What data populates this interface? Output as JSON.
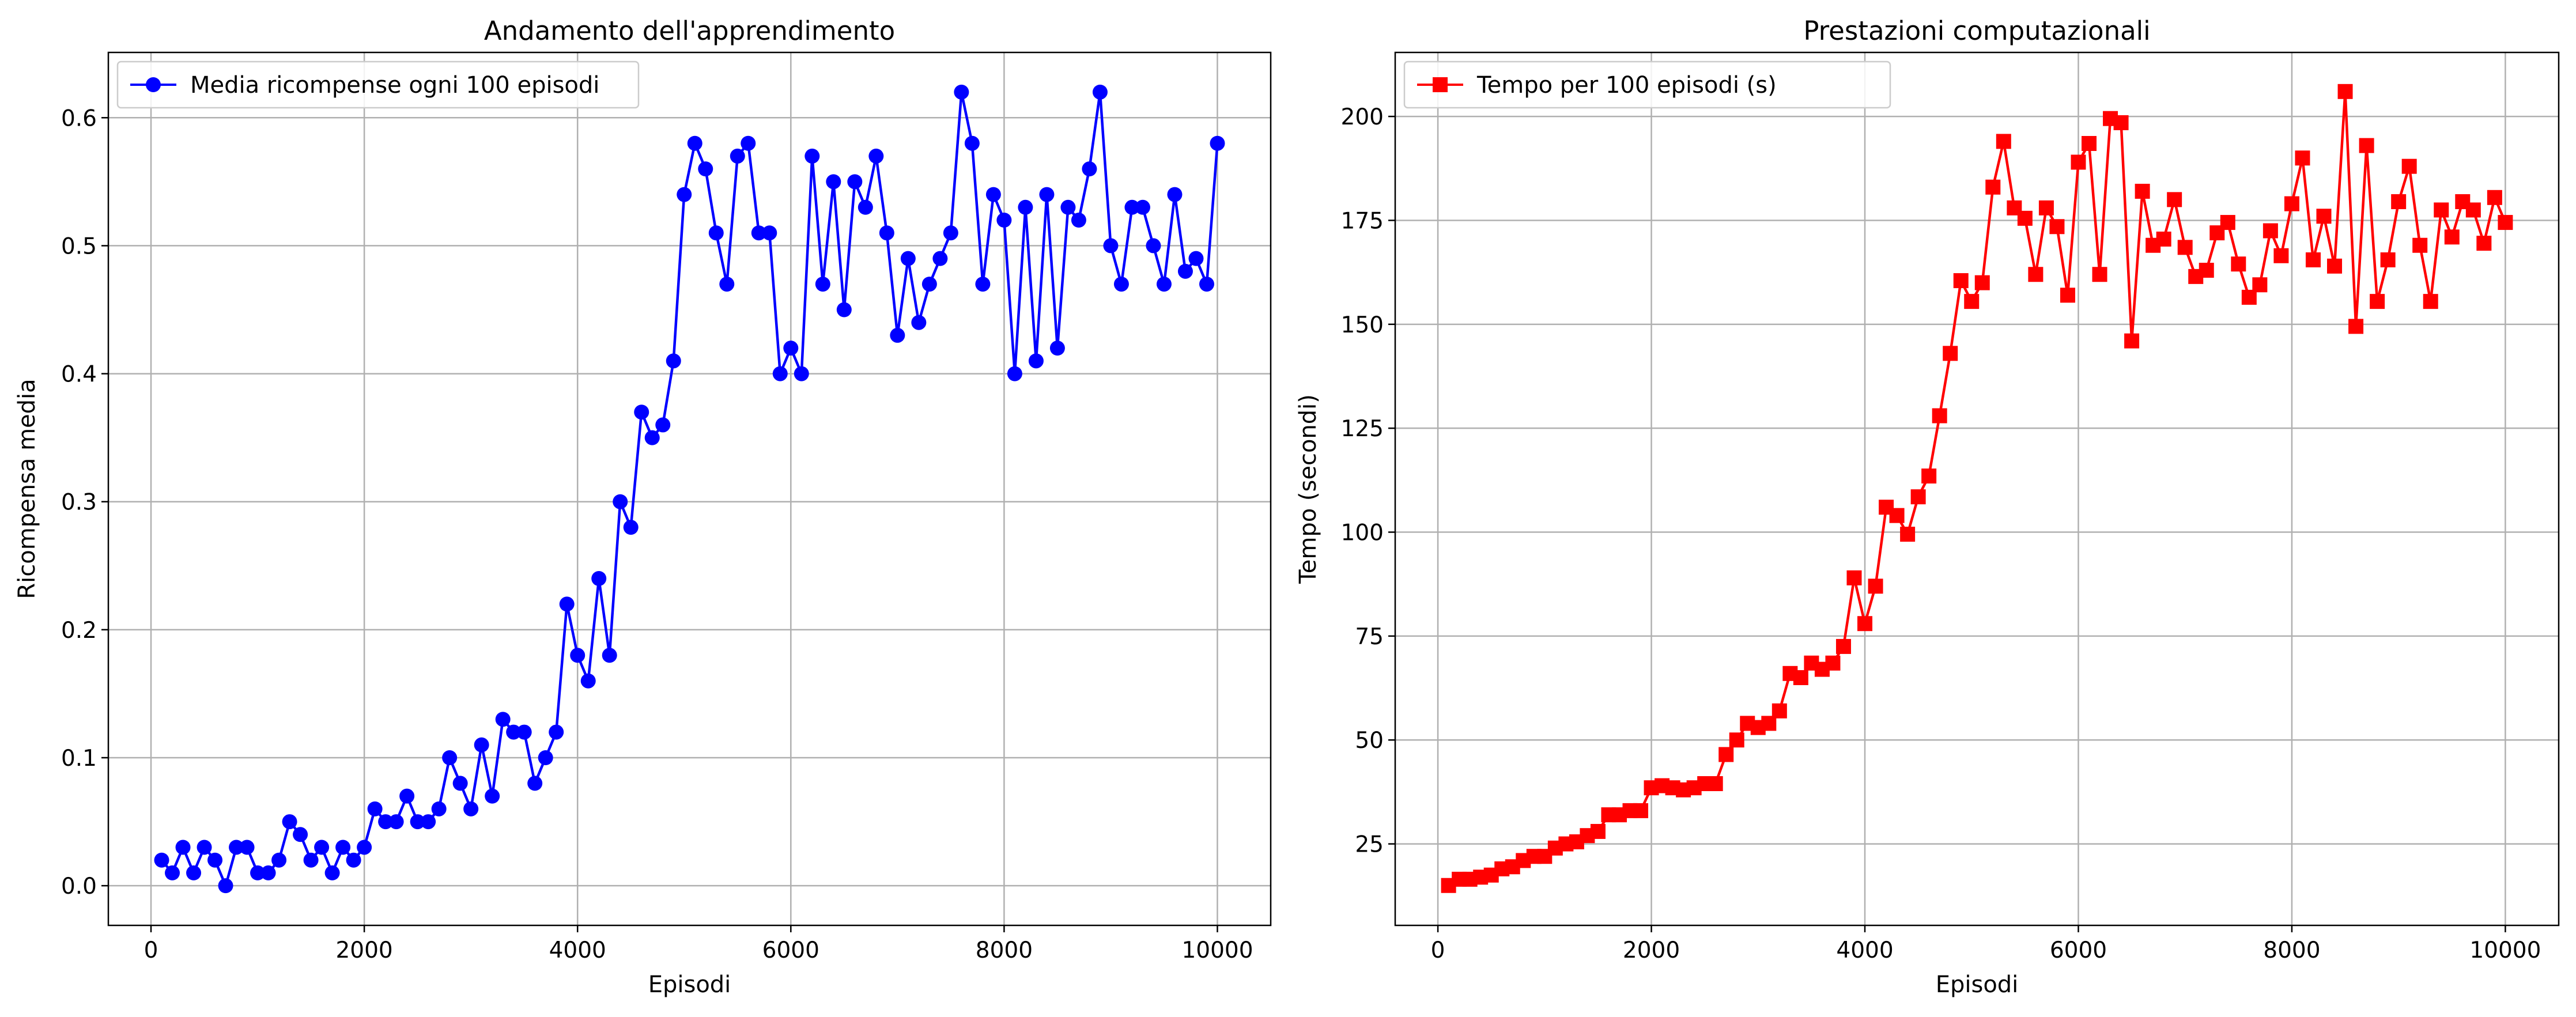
{
  "chart_data": [
    {
      "type": "line",
      "title": "Andamento dell'apprendimento",
      "xlabel": "Episodi",
      "ylabel": "Ricompensa media",
      "xlim": [
        -400,
        10500
      ],
      "ylim": [
        -0.031,
        0.651
      ],
      "xticks": [
        0,
        2000,
        4000,
        6000,
        8000,
        10000
      ],
      "xtick_labels": [
        "0",
        "2000",
        "4000",
        "6000",
        "8000",
        "10000"
      ],
      "yticks": [
        0.0,
        0.1,
        0.2,
        0.3,
        0.4,
        0.5,
        0.6
      ],
      "ytick_labels": [
        "0.0",
        "0.1",
        "0.2",
        "0.3",
        "0.4",
        "0.5",
        "0.6"
      ],
      "grid": true,
      "legend_position": "upper-left",
      "series": [
        {
          "name": "Media ricompense ogni 100 episodi",
          "color": "#0000ff",
          "marker": "circle",
          "x": [
            100,
            200,
            300,
            400,
            500,
            600,
            700,
            800,
            900,
            1000,
            1100,
            1200,
            1300,
            1400,
            1500,
            1600,
            1700,
            1800,
            1900,
            2000,
            2100,
            2200,
            2300,
            2400,
            2500,
            2600,
            2700,
            2800,
            2900,
            3000,
            3100,
            3200,
            3300,
            3400,
            3500,
            3600,
            3700,
            3800,
            3900,
            4000,
            4100,
            4200,
            4300,
            4400,
            4500,
            4600,
            4700,
            4800,
            4900,
            5000,
            5100,
            5200,
            5300,
            5400,
            5500,
            5600,
            5700,
            5800,
            5900,
            6000,
            6100,
            6200,
            6300,
            6400,
            6500,
            6600,
            6700,
            6800,
            6900,
            7000,
            7100,
            7200,
            7300,
            7400,
            7500,
            7600,
            7700,
            7800,
            7900,
            8000,
            8100,
            8200,
            8300,
            8400,
            8500,
            8600,
            8700,
            8800,
            8900,
            9000,
            9100,
            9200,
            9300,
            9400,
            9500,
            9600,
            9700,
            9800,
            9900,
            10000
          ],
          "y": [
            0.02,
            0.01,
            0.03,
            0.01,
            0.03,
            0.02,
            0.0,
            0.03,
            0.03,
            0.01,
            0.01,
            0.02,
            0.05,
            0.04,
            0.02,
            0.03,
            0.01,
            0.03,
            0.02,
            0.03,
            0.06,
            0.05,
            0.05,
            0.07,
            0.05,
            0.05,
            0.06,
            0.1,
            0.08,
            0.06,
            0.11,
            0.07,
            0.13,
            0.12,
            0.12,
            0.08,
            0.1,
            0.12,
            0.22,
            0.18,
            0.16,
            0.24,
            0.18,
            0.3,
            0.28,
            0.37,
            0.35,
            0.36,
            0.41,
            0.54,
            0.58,
            0.56,
            0.51,
            0.47,
            0.57,
            0.58,
            0.51,
            0.51,
            0.4,
            0.42,
            0.4,
            0.57,
            0.47,
            0.55,
            0.45,
            0.55,
            0.53,
            0.57,
            0.51,
            0.43,
            0.49,
            0.44,
            0.47,
            0.49,
            0.51,
            0.62,
            0.58,
            0.47,
            0.54,
            0.52,
            0.4,
            0.53,
            0.41,
            0.54,
            0.42,
            0.53,
            0.52,
            0.56,
            0.62,
            0.5,
            0.47,
            0.53,
            0.53,
            0.5,
            0.47,
            0.54,
            0.48,
            0.49,
            0.47,
            0.58
          ]
        }
      ]
    },
    {
      "type": "line",
      "title": "Prestazioni computazionali",
      "xlabel": "Episodi",
      "ylabel": "Tempo (secondi)",
      "xlim": [
        -400,
        10500
      ],
      "ylim": [
        5.4,
        215.4
      ],
      "xticks": [
        0,
        2000,
        4000,
        6000,
        8000,
        10000
      ],
      "xtick_labels": [
        "0",
        "2000",
        "4000",
        "6000",
        "8000",
        "10000"
      ],
      "yticks": [
        25,
        50,
        75,
        100,
        125,
        150,
        175,
        200
      ],
      "ytick_labels": [
        "25",
        "50",
        "75",
        "100",
        "125",
        "150",
        "175",
        "200"
      ],
      "grid": true,
      "legend_position": "upper-left",
      "series": [
        {
          "name": "Tempo per 100 episodi (s)",
          "color": "#ff0000",
          "marker": "square",
          "x": [
            100,
            200,
            300,
            400,
            500,
            600,
            700,
            800,
            900,
            1000,
            1100,
            1200,
            1300,
            1400,
            1500,
            1600,
            1700,
            1800,
            1900,
            2000,
            2100,
            2200,
            2300,
            2400,
            2500,
            2600,
            2700,
            2800,
            2900,
            3000,
            3100,
            3200,
            3300,
            3400,
            3500,
            3600,
            3700,
            3800,
            3900,
            4000,
            4100,
            4200,
            4300,
            4400,
            4500,
            4600,
            4700,
            4800,
            4900,
            5000,
            5100,
            5200,
            5300,
            5400,
            5500,
            5600,
            5700,
            5800,
            5900,
            6000,
            6100,
            6200,
            6300,
            6400,
            6500,
            6600,
            6700,
            6800,
            6900,
            7000,
            7100,
            7200,
            7300,
            7400,
            7500,
            7600,
            7700,
            7800,
            7900,
            8000,
            8100,
            8200,
            8300,
            8400,
            8500,
            8600,
            8700,
            8800,
            8900,
            9000,
            9100,
            9200,
            9300,
            9400,
            9500,
            9600,
            9700,
            9800,
            9900,
            10000
          ],
          "y": [
            15,
            16.5,
            16.5,
            17,
            17.5,
            19,
            19.5,
            21,
            22,
            22,
            24,
            25,
            25.5,
            27,
            28,
            32,
            32,
            33,
            33,
            38.5,
            39,
            38.5,
            38,
            38.5,
            39.5,
            39.5,
            46.5,
            50,
            54,
            53,
            54,
            57,
            66,
            65,
            68.5,
            67,
            68.5,
            72.5,
            89,
            78,
            87,
            106,
            104,
            99.5,
            108.5,
            113.5,
            128,
            143,
            160.5,
            155.5,
            160,
            183,
            194,
            178,
            175.5,
            162,
            178,
            173.5,
            157,
            189,
            193.5,
            162,
            199.5,
            198.5,
            146,
            182,
            169,
            170.5,
            180,
            168.5,
            161.5,
            163,
            172,
            174.5,
            164.5,
            156.5,
            159.5,
            172.5,
            166.5,
            179,
            190,
            165.5,
            176,
            164,
            206,
            149.5,
            193,
            155.5,
            165.5,
            179.5,
            188,
            169,
            155.5,
            177.5,
            171,
            179.5,
            177.5,
            169.5,
            180.5,
            174.5
          ]
        }
      ]
    }
  ]
}
